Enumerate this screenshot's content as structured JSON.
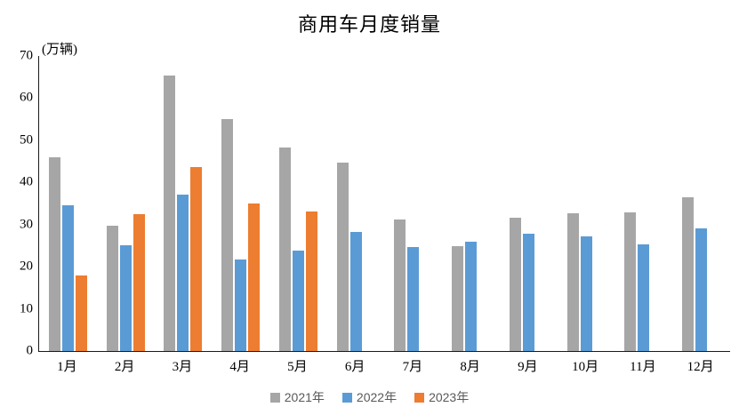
{
  "title": "商用车月度销量",
  "axis_unit": "(万辆)",
  "chart_data": {
    "type": "bar",
    "title": "商用车月度销量",
    "ylabel": "(万辆)",
    "xlabel": "",
    "ylim": [
      0,
      70
    ],
    "ytick_step": 10,
    "grid": false,
    "legend_position": "bottom",
    "categories": [
      "1月",
      "2月",
      "3月",
      "4月",
      "5月",
      "6月",
      "7月",
      "8月",
      "9月",
      "10月",
      "11月",
      "12月"
    ],
    "series": [
      {
        "name": "2021年",
        "color": "#A6A6A6",
        "values": [
          46,
          29.8,
          65.3,
          55.1,
          48.3,
          44.7,
          31.3,
          24.9,
          31.7,
          32.6,
          33,
          36.4
        ]
      },
      {
        "name": "2022年",
        "color": "#5B9BD5",
        "values": [
          34.5,
          25,
          37.1,
          21.8,
          23.9,
          28.2,
          24.6,
          25.9,
          27.8,
          27.3,
          25.4,
          29.2
        ]
      },
      {
        "name": "2023年",
        "color": "#ED7D31",
        "values": [
          18,
          32.4,
          43.7,
          35,
          33.1,
          null,
          null,
          null,
          null,
          null,
          null,
          null
        ]
      }
    ]
  }
}
